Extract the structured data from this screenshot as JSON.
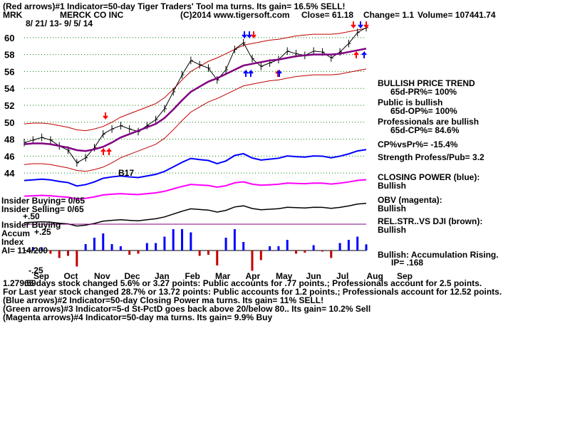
{
  "header": {
    "line1": "(Red arrows)#1 Indicator=50-day Tiger Traders' Tool ma turns. Its gain= 16.5% SELL!",
    "ticker": "MRK",
    "company": "MERCK CO INC",
    "copyright": "(C)2014 www.tigersoft.com",
    "close": "Close=  61.18",
    "change": "Change= 1.1",
    "volume": "Volume= 107441.74",
    "date_range": "8/ 21/ 13-  9/ 5/ 14"
  },
  "right_panel": {
    "trend_title": "BULLISH PRICE TREND",
    "pr": "65d-PR%= 100%",
    "public": "Public is bullish",
    "op": "65d-OP%= 100%",
    "pros": "Professionals are bullish",
    "cp": "65d-CP%= 84.6%",
    "cpvspr": "CP%vsPr%= -15.4%",
    "strength": "Strength Profess/Pub= 3.2",
    "closing_power": "CLOSING POWER (blue):",
    "cp_state": "Bullish",
    "obv": "OBV (magenta):",
    "obv_state": "Bullish",
    "relstr": "REL.STR..VS DJI (brown):",
    "relstr_state": "Bullish",
    "accum": "Bullish: Accumulation Rising.",
    "ip": "IP=  .168"
  },
  "left_labels": {
    "insider_buying": "Insider Buying= 0/65",
    "insider_selling": "Insider Selling= 0/65",
    "insider_buying2": "Insider Buying",
    "accum": "Accum",
    "index": "Index",
    "ai": "AI= 114/200",
    "plus50": "+.50",
    "plus25": "+.25",
    "minus25": "-.25",
    "b17": "B17"
  },
  "footer": {
    "line1": "65 days stock changed  5.6% or  3.27 points:  Public accounts for  .77 points.;  Professionals account for  2.5 points.",
    "line1_prefix": "1.279.59",
    "line2": "For Last year stock changed  28.7% or  13.72 points:  Public accounts for  1.2 points.;  Professionals account for  12.52 points.",
    "line3": "(Blue arrows)#2 Indicator=50-day Closing Power ma turns. Its gain= 11% SELL!",
    "line4": "(Green arrows)#3 Indicator=5-d St-PctD goes back above 20/below 80.. Its gain= 10.2% Sell",
    "line5": "(Magenta arrows)#4 Indicator=50-day ma turns. Its gain= 9.9% Buy"
  },
  "colors": {
    "price": "#000000",
    "ma": "#800080",
    "bands": "#c00000",
    "closing_power": "#0000ff",
    "obv": "#ff00ff",
    "relstr": "#8b4513",
    "accum_pos": "#0000ff",
    "accum_neg": "#c00000",
    "red_arrow": "#ff0000",
    "blue_arrow": "#0000ff",
    "grid_dots": "#008000"
  },
  "chart_data": {
    "type": "line",
    "title": "MERCK CO INC",
    "xlabel": "",
    "ylabel": "",
    "ylim": [
      43,
      61.5
    ],
    "y_ticks": [
      44,
      46,
      48,
      50,
      52,
      54,
      56,
      58,
      60
    ],
    "x_ticks": [
      "Sep",
      "Oct",
      "Nov",
      "Dec",
      "Jan",
      "Feb",
      "Mar",
      "Apr",
      "May",
      "Jun",
      "Jul",
      "Aug",
      "Sep"
    ],
    "series": [
      {
        "name": "Price",
        "values": [
          47.6,
          47.9,
          48.2,
          47.9,
          47.2,
          46.7,
          45.2,
          45.8,
          47.0,
          48.6,
          49.2,
          49.6,
          49.2,
          48.9,
          49.6,
          50.3,
          51.6,
          53.6,
          55.6,
          57.3,
          56.8,
          56.4,
          55.0,
          56.2,
          58.6,
          59.4,
          57.5,
          56.6,
          57.0,
          57.4,
          58.4,
          58.1,
          57.9,
          58.4,
          58.3,
          57.6,
          58.3,
          59.3,
          60.6,
          61.18
        ]
      },
      {
        "name": "50-day MA",
        "values": [
          47.4,
          47.5,
          47.5,
          47.4,
          47.2,
          47.0,
          46.7,
          46.6,
          46.8,
          47.1,
          47.6,
          48.2,
          48.6,
          49.0,
          49.4,
          49.8,
          50.5,
          51.5,
          52.6,
          53.6,
          54.2,
          54.8,
          55.2,
          55.7,
          56.2,
          56.7,
          56.9,
          57.1,
          57.3,
          57.4,
          57.6,
          57.8,
          57.9,
          58.0,
          58.0,
          58.0,
          58.1,
          58.3,
          58.5,
          58.7
        ]
      }
    ]
  }
}
